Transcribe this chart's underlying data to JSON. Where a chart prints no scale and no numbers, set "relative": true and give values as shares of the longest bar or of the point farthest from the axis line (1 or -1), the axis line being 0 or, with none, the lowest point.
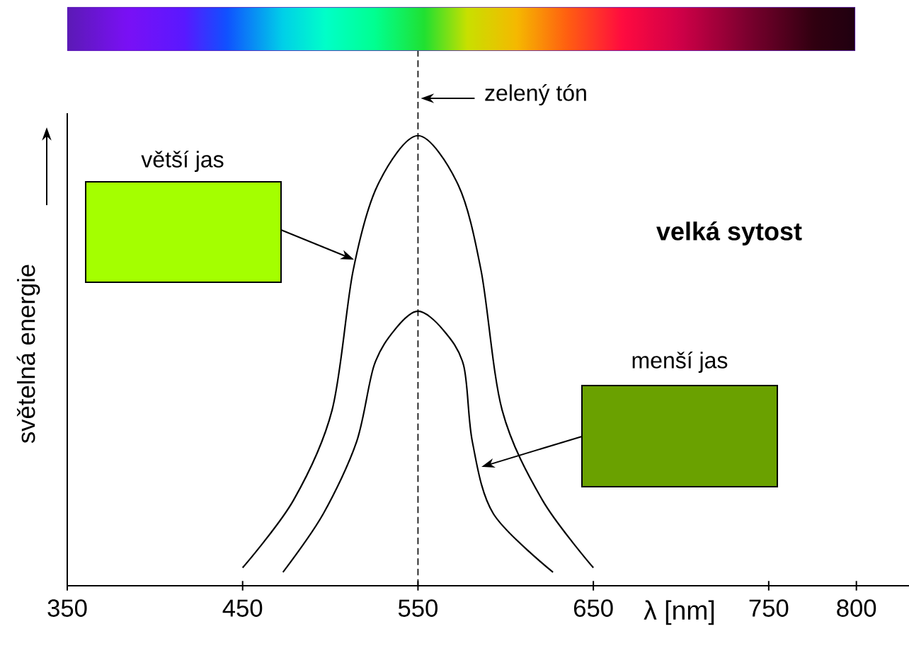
{
  "chart_data": {
    "type": "line",
    "relative": true,
    "xlabel": "λ [nm]",
    "ylabel": "světelná energie",
    "xlim": [
      350,
      830
    ],
    "xticks": [
      350,
      450,
      550,
      650,
      750,
      800
    ],
    "series": [
      {
        "color": "#000000",
        "x": [
          450,
          479,
          501,
          513,
          527,
          550,
          573,
          586,
          598,
          621,
          650
        ],
        "values": [
          0.04,
          0.19,
          0.39,
          0.7,
          0.89,
          1.0,
          0.89,
          0.7,
          0.39,
          0.19,
          0.04
        ]
      },
      {
        "color": "#000000",
        "x": [
          473,
          496,
          515,
          525,
          537,
          550,
          564,
          576,
          581,
          593,
          627
        ],
        "values": [
          0.03,
          0.16,
          0.32,
          0.49,
          0.57,
          0.61,
          0.57,
          0.49,
          0.32,
          0.16,
          0.03
        ]
      }
    ],
    "ref_lines": [
      {
        "axis": "x",
        "value": 550,
        "label": "zelený tón",
        "line_style": "dashed"
      }
    ],
    "annotations": [
      "větší jas",
      "menší jas",
      "velká sytost"
    ]
  }
}
